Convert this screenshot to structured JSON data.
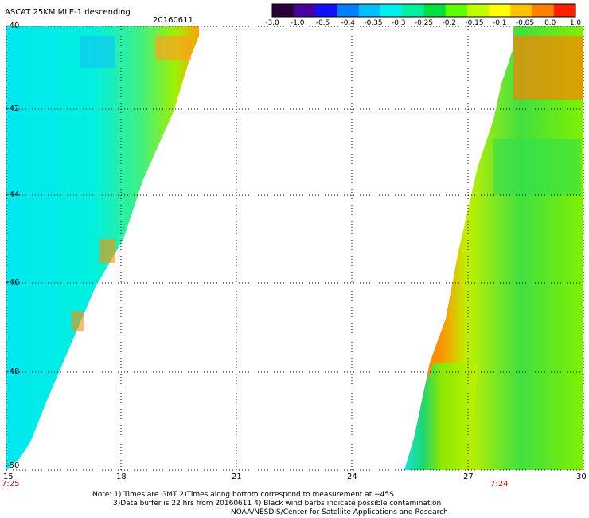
{
  "header": {
    "title": "ASCAT 25KM MLE-1 descending",
    "date": "20160611"
  },
  "colorbar": {
    "labels": [
      "-3.0",
      "-1.0",
      "-0.5",
      "-0.4",
      "-0.35",
      "-0.3",
      "-0.25",
      "-0.2",
      "-0.15",
      "-0.1",
      "-0.05",
      "0.0",
      "1.0"
    ],
    "colors": [
      "#2a0038",
      "#4a00a0",
      "#1010ff",
      "#0080ff",
      "#00c0ff",
      "#00f0f0",
      "#00f0a0",
      "#00e040",
      "#60ff00",
      "#c0ff00",
      "#ffff00",
      "#ffc000",
      "#ff8000",
      "#ff2000"
    ]
  },
  "axes": {
    "lat_labels": [
      "-40",
      "-42",
      "-44",
      "-46",
      "-48",
      "-50"
    ],
    "lon_labels": [
      "15",
      "18",
      "21",
      "24",
      "27",
      "30"
    ]
  },
  "times": {
    "left": "7:25",
    "right": "7:24"
  },
  "notes": {
    "line1": "Note: 1) Times are GMT 2)Times along bottom correspond to measurement at −45S",
    "line2": "3)Data buffer is 22 hrs from 20160611 4) Black wind barbs indicate possible contamination",
    "line3": "NOAA/NESDIS/Center for Satellite Applications and Research"
  }
}
